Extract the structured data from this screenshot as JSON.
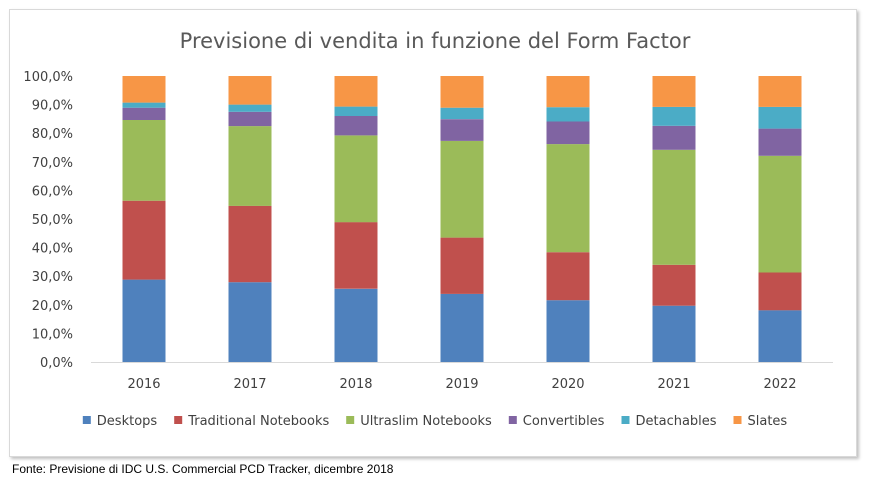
{
  "chart_data": {
    "type": "bar",
    "stacked": true,
    "title": "Previsione di vendita in funzione del Form Factor",
    "categories": [
      "2016",
      "2017",
      "2018",
      "2019",
      "2020",
      "2021",
      "2022"
    ],
    "y_tick_labels": [
      "0,0%",
      "10,0%",
      "20,0%",
      "30,0%",
      "40,0%",
      "50,0%",
      "60,0%",
      "70,0%",
      "80,0%",
      "90,0%",
      "100,0%"
    ],
    "ylim": [
      0,
      100
    ],
    "grid": false,
    "legend_position": "bottom",
    "series": [
      {
        "name": "Desktops",
        "color": "#4f81bd",
        "values": [
          28.8,
          27.9,
          25.6,
          23.8,
          21.6,
          19.7,
          18.1
        ]
      },
      {
        "name": "Traditional Notebooks",
        "color": "#c0504d",
        "values": [
          27.6,
          26.7,
          23.3,
          19.7,
          16.8,
          14.3,
          13.2
        ]
      },
      {
        "name": "Ultraslim Notebooks",
        "color": "#9bbb59",
        "values": [
          28.2,
          27.9,
          30.3,
          33.8,
          37.8,
          40.2,
          40.8
        ]
      },
      {
        "name": "Convertibles",
        "color": "#8064a2",
        "values": [
          4.3,
          5.0,
          6.8,
          7.6,
          7.9,
          8.4,
          9.5
        ]
      },
      {
        "name": "Detachables",
        "color": "#4bacc6",
        "values": [
          1.8,
          2.5,
          3.3,
          4.0,
          5.0,
          6.6,
          7.6
        ]
      },
      {
        "name": "Slates",
        "color": "#f79646",
        "values": [
          9.3,
          10.0,
          10.7,
          11.1,
          10.9,
          10.8,
          10.8
        ]
      }
    ]
  },
  "source_note": "Fonte: Previsione di IDC U.S. Commercial PCD Tracker, dicembre 2018"
}
